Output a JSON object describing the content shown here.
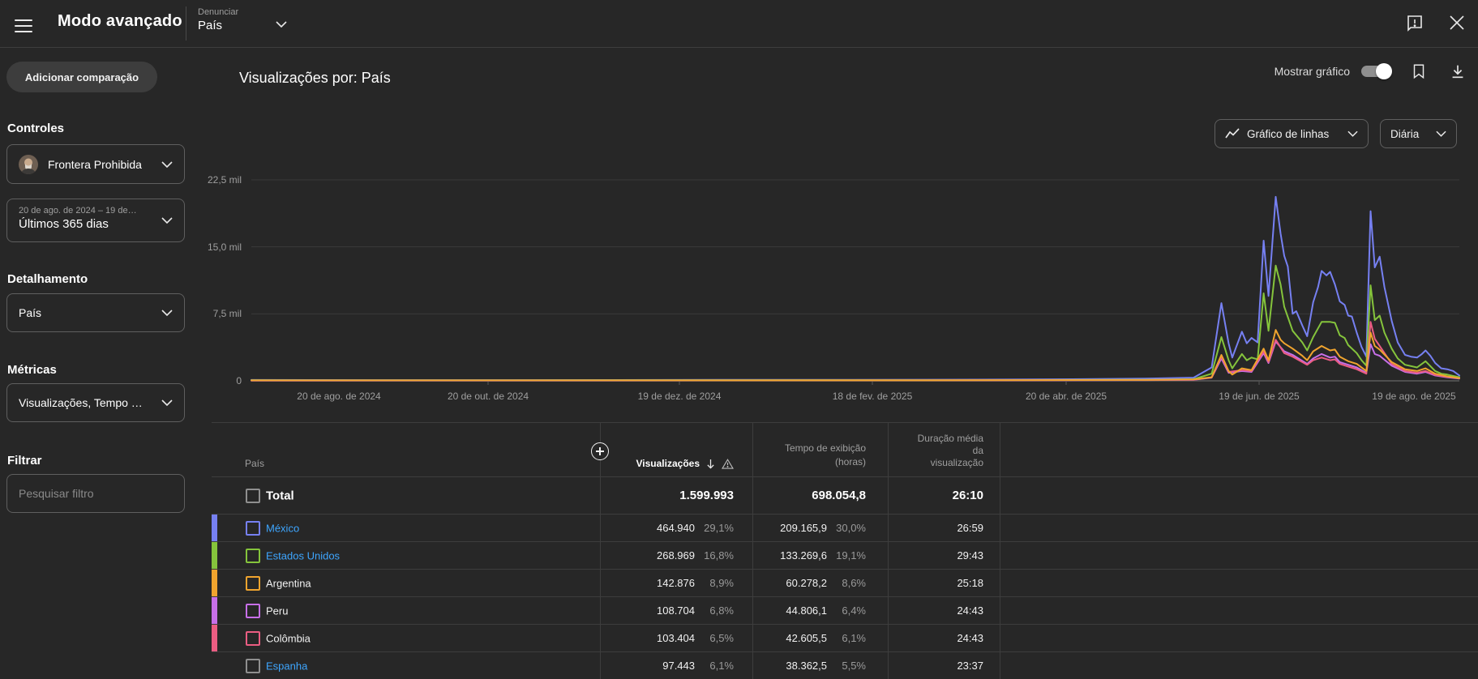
{
  "topbar": {
    "title": "Modo avançado",
    "report_label": "Denunciar",
    "report_value": "País"
  },
  "sidebar": {
    "add_comparison": "Adicionar comparação",
    "controls_label": "Controles",
    "channel_name": "Frontera Prohibida",
    "date_range_sub": "20 de ago. de 2024 – 19 de…",
    "date_range_value": "Últimos 365 dias",
    "breakdown_label": "Detalhamento",
    "breakdown_value": "País",
    "metrics_label": "Métricas",
    "metrics_value": "Visualizações, Tempo …",
    "filter_label": "Filtrar",
    "filter_placeholder": "Pesquisar filtro"
  },
  "header": {
    "title": "Visualizações por: País",
    "show_chart_label": "Mostrar gráfico",
    "show_chart_on": true,
    "chart_type_label": "Gráfico de linhas",
    "granularity_label": "Diária"
  },
  "chart_data": {
    "type": "line",
    "title": "Visualizações por: País",
    "granularity": "Diária",
    "ylim": [
      0,
      22500
    ],
    "yticks": [
      {
        "value": 0,
        "label": "0"
      },
      {
        "value": 7500,
        "label": "7,5 mil"
      },
      {
        "value": 15000,
        "label": "15,0 mil"
      },
      {
        "value": 22500,
        "label": "22,5 mil"
      }
    ],
    "xticklabels": [
      "20 de ago. de 2024",
      "20 de out. de 2024",
      "19 de dez. de 2024",
      "18 de fev. de 2025",
      "20 de abr. de 2025",
      "19 de jun. de 2025",
      "19 de ago. de 2025"
    ],
    "legend_position": "none",
    "grid": true,
    "series": [
      {
        "name": "México",
        "color": "#7680f2",
        "points": [
          [
            0,
            100
          ],
          [
            0.1,
            80
          ],
          [
            0.2,
            80
          ],
          [
            0.3,
            90
          ],
          [
            0.4,
            120
          ],
          [
            0.5,
            110
          ],
          [
            0.6,
            140
          ],
          [
            0.68,
            180
          ],
          [
            0.74,
            250
          ],
          [
            0.78,
            350
          ],
          [
            0.795,
            1500
          ],
          [
            0.803,
            8700
          ],
          [
            0.809,
            4200
          ],
          [
            0.812,
            2600
          ],
          [
            0.82,
            5500
          ],
          [
            0.824,
            4200
          ],
          [
            0.828,
            4800
          ],
          [
            0.833,
            4300
          ],
          [
            0.838,
            15700
          ],
          [
            0.842,
            9500
          ],
          [
            0.848,
            20600
          ],
          [
            0.852,
            16500
          ],
          [
            0.855,
            14000
          ],
          [
            0.858,
            12800
          ],
          [
            0.862,
            7500
          ],
          [
            0.865,
            7800
          ],
          [
            0.87,
            6200
          ],
          [
            0.874,
            5000
          ],
          [
            0.879,
            8800
          ],
          [
            0.883,
            10500
          ],
          [
            0.886,
            12300
          ],
          [
            0.89,
            11800
          ],
          [
            0.893,
            12200
          ],
          [
            0.897,
            10800
          ],
          [
            0.901,
            8900
          ],
          [
            0.905,
            8500
          ],
          [
            0.908,
            7300
          ],
          [
            0.911,
            7200
          ],
          [
            0.915,
            5400
          ],
          [
            0.919,
            3800
          ],
          [
            0.923,
            2700
          ],
          [
            0.9265,
            19000
          ],
          [
            0.93,
            12700
          ],
          [
            0.934,
            13900
          ],
          [
            0.938,
            10500
          ],
          [
            0.944,
            6700
          ],
          [
            0.949,
            4300
          ],
          [
            0.955,
            2900
          ],
          [
            0.96,
            2700
          ],
          [
            0.965,
            2600
          ],
          [
            0.969,
            3000
          ],
          [
            0.972,
            3400
          ],
          [
            0.976,
            2800
          ],
          [
            0.98,
            2000
          ],
          [
            0.985,
            1400
          ],
          [
            0.99,
            1300
          ],
          [
            0.995,
            1100
          ],
          [
            1,
            600
          ]
        ]
      },
      {
        "name": "Estados Unidos",
        "color": "#85c43c",
        "points": [
          [
            0,
            60
          ],
          [
            0.2,
            55
          ],
          [
            0.4,
            70
          ],
          [
            0.6,
            80
          ],
          [
            0.74,
            120
          ],
          [
            0.78,
            180
          ],
          [
            0.795,
            800
          ],
          [
            0.803,
            4900
          ],
          [
            0.809,
            2300
          ],
          [
            0.812,
            1400
          ],
          [
            0.82,
            3000
          ],
          [
            0.824,
            2300
          ],
          [
            0.828,
            2600
          ],
          [
            0.833,
            2400
          ],
          [
            0.838,
            9800
          ],
          [
            0.842,
            5600
          ],
          [
            0.848,
            12900
          ],
          [
            0.852,
            10800
          ],
          [
            0.855,
            8300
          ],
          [
            0.862,
            5600
          ],
          [
            0.87,
            4300
          ],
          [
            0.874,
            3400
          ],
          [
            0.879,
            4900
          ],
          [
            0.886,
            6600
          ],
          [
            0.893,
            6600
          ],
          [
            0.897,
            6500
          ],
          [
            0.901,
            5100
          ],
          [
            0.905,
            4800
          ],
          [
            0.908,
            4000
          ],
          [
            0.915,
            3100
          ],
          [
            0.919,
            2300
          ],
          [
            0.923,
            1700
          ],
          [
            0.9265,
            10700
          ],
          [
            0.93,
            6800
          ],
          [
            0.934,
            7300
          ],
          [
            0.938,
            5400
          ],
          [
            0.944,
            3600
          ],
          [
            0.949,
            2500
          ],
          [
            0.955,
            1800
          ],
          [
            0.965,
            1500
          ],
          [
            0.972,
            2200
          ],
          [
            0.98,
            1100
          ],
          [
            0.985,
            800
          ],
          [
            0.99,
            700
          ],
          [
            1,
            400
          ]
        ]
      },
      {
        "name": "Peru",
        "color": "#c76fe8",
        "points": [
          [
            0,
            40
          ],
          [
            0.3,
            40
          ],
          [
            0.6,
            55
          ],
          [
            0.74,
            80
          ],
          [
            0.78,
            120
          ],
          [
            0.795,
            350
          ],
          [
            0.803,
            2500
          ],
          [
            0.809,
            900
          ],
          [
            0.82,
            1100
          ],
          [
            0.828,
            1000
          ],
          [
            0.838,
            3100
          ],
          [
            0.842,
            2000
          ],
          [
            0.848,
            4400
          ],
          [
            0.855,
            3300
          ],
          [
            0.862,
            2900
          ],
          [
            0.874,
            1900
          ],
          [
            0.879,
            2500
          ],
          [
            0.886,
            3000
          ],
          [
            0.893,
            2600
          ],
          [
            0.897,
            2700
          ],
          [
            0.901,
            2100
          ],
          [
            0.908,
            1800
          ],
          [
            0.915,
            1500
          ],
          [
            0.923,
            900
          ],
          [
            0.9265,
            4100
          ],
          [
            0.93,
            3000
          ],
          [
            0.934,
            2800
          ],
          [
            0.944,
            1700
          ],
          [
            0.955,
            1000
          ],
          [
            0.965,
            800
          ],
          [
            0.972,
            1000
          ],
          [
            0.98,
            600
          ],
          [
            0.99,
            400
          ],
          [
            1,
            250
          ]
        ]
      },
      {
        "name": "Colômbia",
        "color": "#eb5d82",
        "points": [
          [
            0,
            40
          ],
          [
            0.3,
            45
          ],
          [
            0.6,
            60
          ],
          [
            0.74,
            90
          ],
          [
            0.78,
            130
          ],
          [
            0.795,
            380
          ],
          [
            0.803,
            2700
          ],
          [
            0.809,
            1000
          ],
          [
            0.82,
            1200
          ],
          [
            0.828,
            1100
          ],
          [
            0.838,
            3300
          ],
          [
            0.842,
            2100
          ],
          [
            0.848,
            4600
          ],
          [
            0.855,
            3100
          ],
          [
            0.862,
            2700
          ],
          [
            0.874,
            1800
          ],
          [
            0.879,
            2300
          ],
          [
            0.886,
            2600
          ],
          [
            0.893,
            2300
          ],
          [
            0.897,
            2400
          ],
          [
            0.901,
            1900
          ],
          [
            0.908,
            1600
          ],
          [
            0.915,
            1300
          ],
          [
            0.923,
            800
          ],
          [
            0.9265,
            6600
          ],
          [
            0.93,
            4700
          ],
          [
            0.934,
            3900
          ],
          [
            0.944,
            1900
          ],
          [
            0.955,
            1100
          ],
          [
            0.965,
            900
          ],
          [
            0.972,
            1100
          ],
          [
            0.98,
            650
          ],
          [
            0.99,
            450
          ],
          [
            1,
            300
          ]
        ]
      },
      {
        "name": "Argentina",
        "color": "#f0a42e",
        "points": [
          [
            0,
            50
          ],
          [
            0.3,
            50
          ],
          [
            0.6,
            65
          ],
          [
            0.74,
            100
          ],
          [
            0.78,
            150
          ],
          [
            0.795,
            400
          ],
          [
            0.803,
            2900
          ],
          [
            0.809,
            1100
          ],
          [
            0.812,
            700
          ],
          [
            0.82,
            1400
          ],
          [
            0.828,
            1200
          ],
          [
            0.838,
            3600
          ],
          [
            0.842,
            2300
          ],
          [
            0.848,
            5700
          ],
          [
            0.852,
            4600
          ],
          [
            0.855,
            4200
          ],
          [
            0.862,
            3600
          ],
          [
            0.87,
            2800
          ],
          [
            0.874,
            2300
          ],
          [
            0.879,
            3300
          ],
          [
            0.886,
            3900
          ],
          [
            0.893,
            3400
          ],
          [
            0.897,
            3500
          ],
          [
            0.901,
            2700
          ],
          [
            0.908,
            2200
          ],
          [
            0.915,
            1900
          ],
          [
            0.923,
            1100
          ],
          [
            0.9265,
            5400
          ],
          [
            0.93,
            3900
          ],
          [
            0.934,
            3500
          ],
          [
            0.944,
            2100
          ],
          [
            0.955,
            1300
          ],
          [
            0.965,
            1100
          ],
          [
            0.972,
            1400
          ],
          [
            0.98,
            800
          ],
          [
            0.99,
            500
          ],
          [
            1,
            300
          ]
        ]
      }
    ]
  },
  "table": {
    "columns": {
      "country": "País",
      "views": "Visualizações",
      "watch_time_line1": "Tempo de exibição",
      "watch_time_line2": "(horas)",
      "avg_line1": "Duração média",
      "avg_line2": "da",
      "avg_line3": "visualização"
    },
    "total": {
      "label": "Total",
      "views": "1.599.993",
      "watch_time": "698.054,8",
      "avg_duration": "26:10"
    },
    "rows": [
      {
        "country": "México",
        "link": true,
        "color": "#7680f2",
        "views": "464.940",
        "views_pct": "29,1%",
        "watch_time": "209.165,9",
        "watch_pct": "30,0%",
        "avg_duration": "26:59"
      },
      {
        "country": "Estados Unidos",
        "link": true,
        "color": "#85c43c",
        "views": "268.969",
        "views_pct": "16,8%",
        "watch_time": "133.269,6",
        "watch_pct": "19,1%",
        "avg_duration": "29:43"
      },
      {
        "country": "Argentina",
        "link": false,
        "color": "#f0a42e",
        "views": "142.876",
        "views_pct": "8,9%",
        "watch_time": "60.278,2",
        "watch_pct": "8,6%",
        "avg_duration": "25:18"
      },
      {
        "country": "Peru",
        "link": false,
        "color": "#c76fe8",
        "views": "108.704",
        "views_pct": "6,8%",
        "watch_time": "44.806,1",
        "watch_pct": "6,4%",
        "avg_duration": "24:43"
      },
      {
        "country": "Colômbia",
        "link": false,
        "color": "#eb5d82",
        "views": "103.404",
        "views_pct": "6,5%",
        "watch_time": "42.605,5",
        "watch_pct": "6,1%",
        "avg_duration": "24:43"
      },
      {
        "country": "Espanha",
        "link": true,
        "color": null,
        "views": "97.443",
        "views_pct": "6,1%",
        "watch_time": "38.362,5",
        "watch_pct": "5,5%",
        "avg_duration": "23:37"
      }
    ]
  }
}
